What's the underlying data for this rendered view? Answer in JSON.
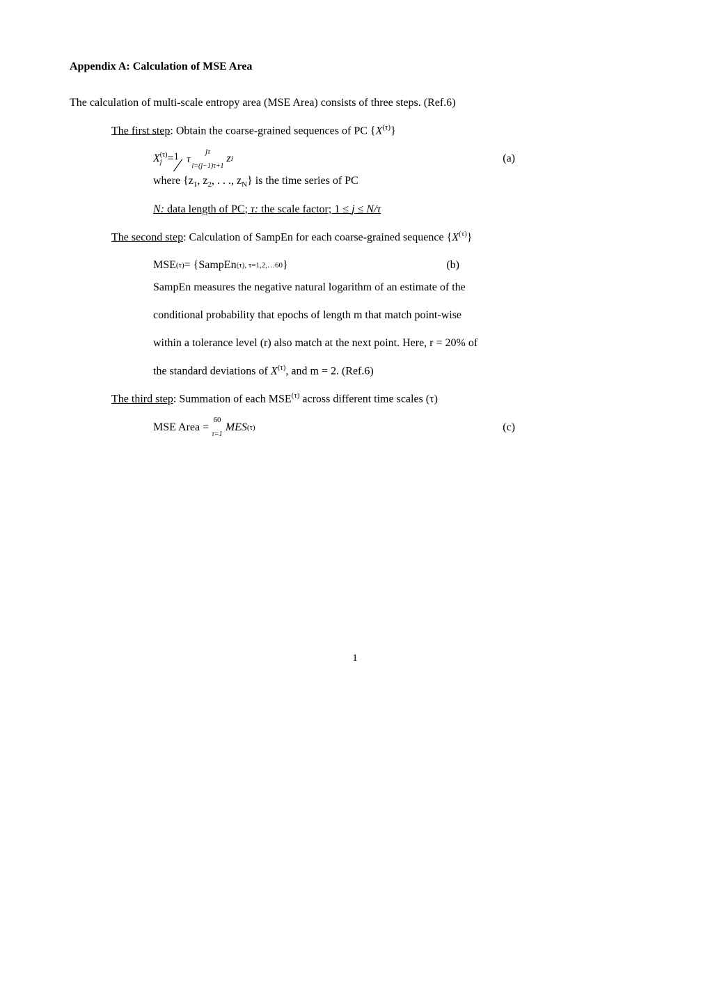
{
  "title": "Appendix A: Calculation of MSE Area",
  "intro": "The calculation of multi-scale entropy area (MSE Area) consists of three steps. (Ref.6)",
  "step1": {
    "label": "The first step",
    "text": ": Obtain the coarse-grained sequences of PC  {",
    "var": "X",
    "var_sup": "(τ)",
    "close": "}",
    "eq": {
      "lhs_var": "X",
      "lhs_sup": "(τ)",
      "lhs_sub": "j",
      "equals": " = ",
      "frac_num": "1",
      "frac_den": "τ",
      "sum_top": "jτ",
      "sum_bot": "i=(j−1)τ+1",
      "rhs_var": "z",
      "rhs_sub": "i",
      "tag": "(a)"
    },
    "where": "where {z",
    "where_sub1": "1",
    "where_mid1": ", z",
    "where_sub2": "2",
    "where_mid2": ", . . ., z",
    "where_subN": "N",
    "where_end": "} is the time series of PC",
    "note_pre": "N:",
    "note1": " data length of PC; ",
    "note_tau": "τ:",
    "note2": " the scale factor; 1 ≤ ",
    "note_j": "j",
    "note3": " ≤ ",
    "note_frac": "N/τ"
  },
  "step2": {
    "label": "The second step",
    "text": ": Calculation of SampEn for each coarse-grained sequence {",
    "var": "X",
    "var_sup": "(τ)",
    "close": "}",
    "eq": {
      "lhs": "MSE",
      "lhs_sup": "(τ)",
      "equals": " = {SampEn",
      "sub": "(τ), τ=1,2,…60",
      "close": "}",
      "tag": "(b)"
    },
    "para1": "SampEn measures the negative natural logarithm of an estimate of the",
    "para2": "conditional probability that epochs of length m that match point-wise",
    "para3": "within a tolerance level (r) also match at the next point. Here, r = 20% of",
    "para4a": "the standard deviations of ",
    "para4_var": "X",
    "para4_sup": "(τ)",
    "para4b": ", and m = 2. (Ref.6)"
  },
  "step3": {
    "label": "The third step",
    "text": ": Summation of each MSE",
    "sup": "(τ)",
    "text2": " across different time scales (τ)",
    "eq": {
      "lhs": "MSE Area = ",
      "sum_top": "60",
      "sum_bot": "τ=1",
      "rhs": "MES",
      "rhs_sup": "(τ)",
      "tag": "(c)"
    }
  },
  "page_number": "1"
}
